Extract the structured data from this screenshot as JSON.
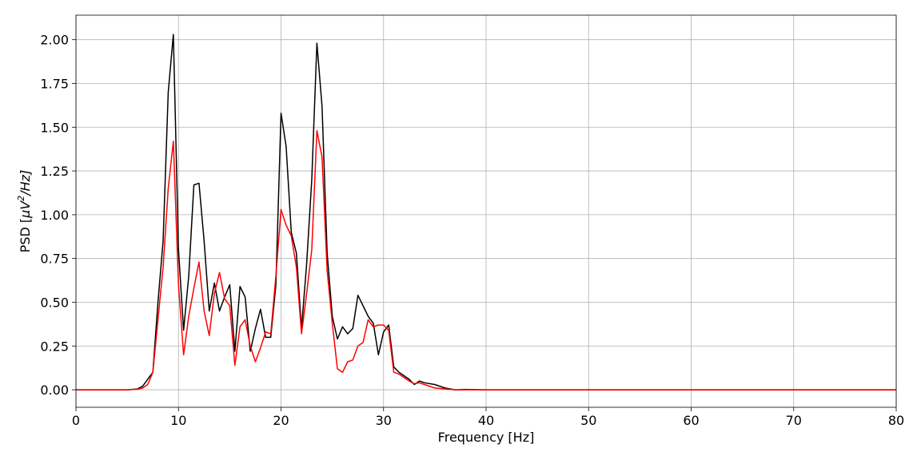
{
  "chart_data": {
    "type": "line",
    "xlabel": "Frequency [Hz]",
    "ylabel": "PSD [μV²/Hz]",
    "ylabel_parts": {
      "prefix": "PSD [",
      "mu": "μV",
      "sup": "2",
      "suffix": "/Hz]"
    },
    "xlim": [
      0,
      80
    ],
    "ylim": [
      -0.1,
      2.14
    ],
    "xticks": [
      0,
      10,
      20,
      30,
      40,
      50,
      60,
      70,
      80
    ],
    "yticks": [
      0.0,
      0.25,
      0.5,
      0.75,
      1.0,
      1.25,
      1.5,
      1.75,
      2.0
    ],
    "xtick_labels": [
      "0",
      "10",
      "20",
      "30",
      "40",
      "50",
      "60",
      "70",
      "80"
    ],
    "ytick_labels": [
      "0.00",
      "0.25",
      "0.50",
      "0.75",
      "1.00",
      "1.25",
      "1.50",
      "1.75",
      "2.00"
    ],
    "grid": true,
    "series": [
      {
        "color": "#000000",
        "points": [
          [
            0,
            0
          ],
          [
            5,
            0
          ],
          [
            6,
            0.005
          ],
          [
            6.5,
            0.02
          ],
          [
            7,
            0.06
          ],
          [
            7.5,
            0.1
          ],
          [
            8,
            0.5
          ],
          [
            8.5,
            0.85
          ],
          [
            9,
            1.7
          ],
          [
            9.5,
            2.03
          ],
          [
            10,
            0.8
          ],
          [
            10.5,
            0.34
          ],
          [
            11,
            0.65
          ],
          [
            11.5,
            1.17
          ],
          [
            12,
            1.18
          ],
          [
            12.5,
            0.85
          ],
          [
            13,
            0.45
          ],
          [
            13.5,
            0.61
          ],
          [
            14,
            0.45
          ],
          [
            14.5,
            0.53
          ],
          [
            15,
            0.6
          ],
          [
            15.5,
            0.22
          ],
          [
            16,
            0.59
          ],
          [
            16.5,
            0.53
          ],
          [
            17,
            0.22
          ],
          [
            17.5,
            0.35
          ],
          [
            18,
            0.46
          ],
          [
            18.5,
            0.3
          ],
          [
            19,
            0.3
          ],
          [
            19.5,
            0.6
          ],
          [
            20,
            1.58
          ],
          [
            20.5,
            1.39
          ],
          [
            21,
            0.9
          ],
          [
            21.5,
            0.78
          ],
          [
            22,
            0.35
          ],
          [
            22.5,
            0.72
          ],
          [
            23,
            1.2
          ],
          [
            23.5,
            1.98
          ],
          [
            24,
            1.62
          ],
          [
            24.5,
            0.78
          ],
          [
            25,
            0.42
          ],
          [
            25.5,
            0.29
          ],
          [
            26,
            0.36
          ],
          [
            26.5,
            0.32
          ],
          [
            27,
            0.35
          ],
          [
            27.5,
            0.54
          ],
          [
            28,
            0.48
          ],
          [
            28.5,
            0.42
          ],
          [
            29,
            0.38
          ],
          [
            29.5,
            0.2
          ],
          [
            30,
            0.33
          ],
          [
            30.5,
            0.37
          ],
          [
            31,
            0.13
          ],
          [
            31.5,
            0.1
          ],
          [
            32,
            0.08
          ],
          [
            32.5,
            0.06
          ],
          [
            33,
            0.03
          ],
          [
            33.5,
            0.05
          ],
          [
            34,
            0.04
          ],
          [
            35,
            0.03
          ],
          [
            36,
            0.01
          ],
          [
            37,
            0.0
          ],
          [
            38,
            0.002
          ],
          [
            40,
            0
          ],
          [
            80,
            0
          ]
        ]
      },
      {
        "color": "#ff0000",
        "points": [
          [
            0,
            0
          ],
          [
            5,
            0
          ],
          [
            6,
            0.003
          ],
          [
            6.5,
            0.01
          ],
          [
            7,
            0.03
          ],
          [
            7.5,
            0.1
          ],
          [
            8,
            0.4
          ],
          [
            8.5,
            0.7
          ],
          [
            9,
            1.15
          ],
          [
            9.5,
            1.42
          ],
          [
            10,
            0.6
          ],
          [
            10.5,
            0.2
          ],
          [
            11,
            0.42
          ],
          [
            11.5,
            0.58
          ],
          [
            12,
            0.73
          ],
          [
            12.5,
            0.45
          ],
          [
            13,
            0.31
          ],
          [
            13.5,
            0.55
          ],
          [
            14,
            0.67
          ],
          [
            14.5,
            0.52
          ],
          [
            15,
            0.48
          ],
          [
            15.5,
            0.14
          ],
          [
            16,
            0.36
          ],
          [
            16.5,
            0.4
          ],
          [
            17,
            0.25
          ],
          [
            17.5,
            0.16
          ],
          [
            18,
            0.24
          ],
          [
            18.5,
            0.33
          ],
          [
            19,
            0.32
          ],
          [
            19.5,
            0.65
          ],
          [
            20,
            1.03
          ],
          [
            20.5,
            0.94
          ],
          [
            21,
            0.88
          ],
          [
            21.5,
            0.7
          ],
          [
            22,
            0.32
          ],
          [
            22.5,
            0.55
          ],
          [
            23,
            0.8
          ],
          [
            23.5,
            1.48
          ],
          [
            24,
            1.33
          ],
          [
            24.5,
            0.68
          ],
          [
            25,
            0.38
          ],
          [
            25.5,
            0.12
          ],
          [
            26,
            0.1
          ],
          [
            26.5,
            0.16
          ],
          [
            27,
            0.17
          ],
          [
            27.5,
            0.25
          ],
          [
            28,
            0.27
          ],
          [
            28.5,
            0.4
          ],
          [
            29,
            0.36
          ],
          [
            29.5,
            0.37
          ],
          [
            30,
            0.37
          ],
          [
            30.5,
            0.34
          ],
          [
            31,
            0.1
          ],
          [
            31.5,
            0.09
          ],
          [
            32,
            0.07
          ],
          [
            32.5,
            0.05
          ],
          [
            33,
            0.035
          ],
          [
            33.5,
            0.04
          ],
          [
            34,
            0.03
          ],
          [
            35,
            0.01
          ],
          [
            36,
            0.005
          ],
          [
            37,
            0.0
          ],
          [
            40,
            0
          ],
          [
            80,
            0
          ]
        ]
      }
    ]
  }
}
